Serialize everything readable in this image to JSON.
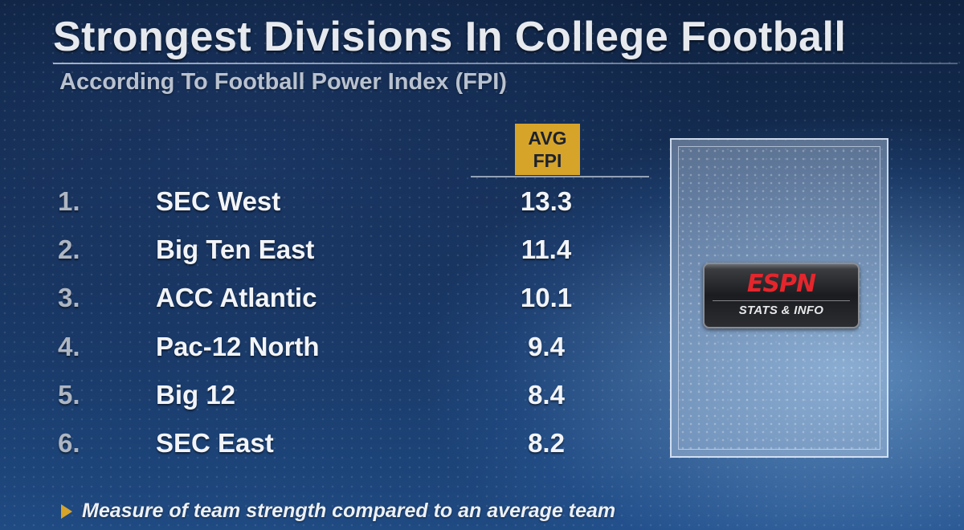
{
  "title": "Strongest Divisions In College Football",
  "subtitle": "According To Football Power Index (FPI)",
  "column_header": {
    "line1": "AVG",
    "line2": "FPI"
  },
  "rows": [
    {
      "rank": "1.",
      "division": "SEC West",
      "avg_fpi": "13.3"
    },
    {
      "rank": "2.",
      "division": "Big Ten East",
      "avg_fpi": "11.4"
    },
    {
      "rank": "3.",
      "division": "ACC Atlantic",
      "avg_fpi": "10.1"
    },
    {
      "rank": "4.",
      "division": "Pac-12 North",
      "avg_fpi": "9.4"
    },
    {
      "rank": "5.",
      "division": "Big 12",
      "avg_fpi": "8.4"
    },
    {
      "rank": "6.",
      "division": "SEC East",
      "avg_fpi": "8.2"
    }
  ],
  "logo": {
    "mark": "ESPN",
    "sub": "STATS & INFO"
  },
  "footnote": "Measure of team strength compared to an average team",
  "colors": {
    "accent": "#d7a42a",
    "brand_red": "#e4262c",
    "text": "#f2f4f7"
  }
}
